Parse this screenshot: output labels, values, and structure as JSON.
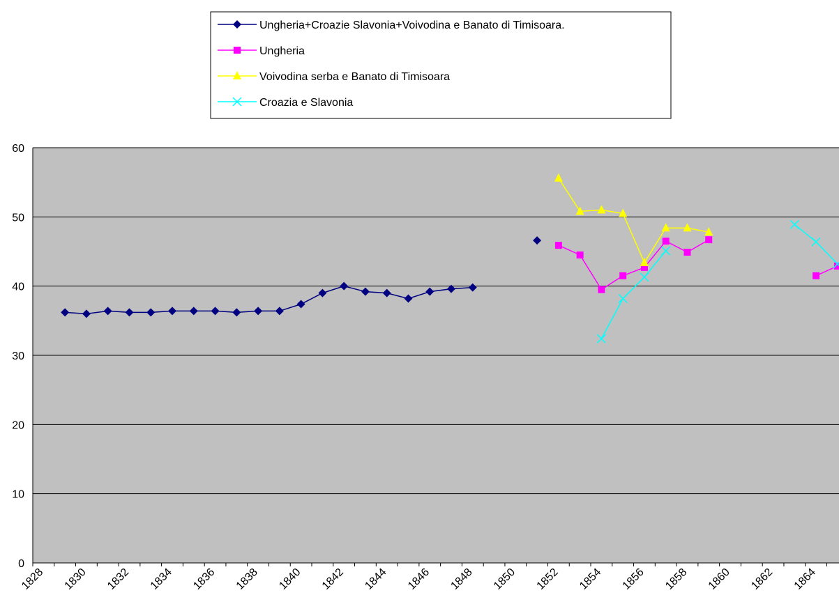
{
  "chart_data": {
    "type": "line",
    "categories": [
      "1828",
      null,
      "1830",
      null,
      "1832",
      null,
      "1834",
      null,
      "1836",
      null,
      "1838",
      null,
      "1840",
      null,
      "1842",
      null,
      "1844",
      null,
      "1846",
      null,
      "1848",
      null,
      "1850",
      null,
      "1852",
      null,
      "1854",
      null,
      "1856",
      null,
      "1858",
      null,
      "1860",
      null,
      "1862",
      null,
      "1864",
      null
    ],
    "series": [
      {
        "name": "Ungheria+Croazie Slavonia+Voivodina e Banato di Timisoara.",
        "color": "#000080",
        "marker": "diamond",
        "values": [
          null,
          36.2,
          36.0,
          36.4,
          36.2,
          36.2,
          36.4,
          36.4,
          36.4,
          36.2,
          36.4,
          36.4,
          37.4,
          39.0,
          40.0,
          39.2,
          39.0,
          38.2,
          39.2,
          39.6,
          39.8,
          null,
          null,
          46.6,
          null,
          null,
          null,
          null,
          null,
          null,
          null,
          null,
          null,
          null,
          null,
          null,
          null,
          null
        ]
      },
      {
        "name": "Ungheria",
        "color": "#ff00ff",
        "marker": "square",
        "values": [
          null,
          null,
          null,
          null,
          null,
          null,
          null,
          null,
          null,
          null,
          null,
          null,
          null,
          null,
          null,
          null,
          null,
          null,
          null,
          null,
          null,
          null,
          null,
          null,
          45.9,
          44.5,
          39.5,
          41.5,
          42.7,
          46.5,
          44.9,
          46.7,
          null,
          null,
          null,
          null,
          41.5,
          42.9
        ]
      },
      {
        "name": "Voivodina serba e Banato di Timisoara",
        "color": "#ffff00",
        "marker": "triangle",
        "values": [
          null,
          null,
          null,
          null,
          null,
          null,
          null,
          null,
          null,
          null,
          null,
          null,
          null,
          null,
          null,
          null,
          null,
          null,
          null,
          null,
          null,
          null,
          null,
          null,
          55.6,
          50.8,
          51.0,
          50.5,
          43.4,
          48.4,
          48.4,
          47.8,
          null,
          null,
          null,
          null,
          null,
          null
        ]
      },
      {
        "name": "Croazia e Slavonia",
        "color": "#00ffff",
        "marker": "x",
        "values": [
          null,
          null,
          null,
          null,
          null,
          null,
          null,
          null,
          null,
          null,
          null,
          null,
          null,
          null,
          null,
          null,
          null,
          null,
          null,
          null,
          null,
          null,
          null,
          null,
          null,
          null,
          32.4,
          38.2,
          41.3,
          45.1,
          null,
          null,
          null,
          null,
          null,
          48.9,
          46.4,
          43.2
        ]
      }
    ],
    "ylim": [
      0,
      60
    ],
    "yticks": [
      0,
      10,
      20,
      30,
      40,
      50,
      60
    ],
    "grid": true,
    "legend": "top"
  }
}
